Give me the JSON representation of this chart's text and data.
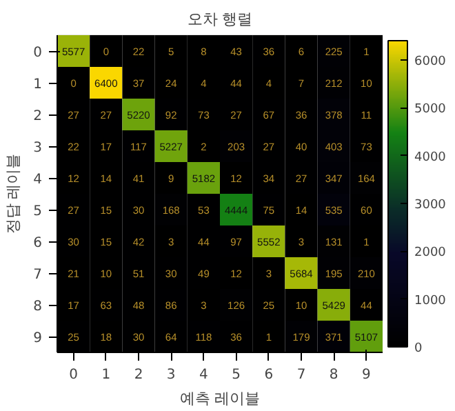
{
  "chart_data": {
    "type": "heatmap",
    "title": "오차 행렬",
    "xlabel": "예측 레이블",
    "ylabel": "정답 레이블",
    "categories": [
      "0",
      "1",
      "2",
      "3",
      "4",
      "5",
      "6",
      "7",
      "8",
      "9"
    ],
    "y_categories": [
      "0",
      "1",
      "2",
      "3",
      "4",
      "5",
      "6",
      "7",
      "8",
      "9"
    ],
    "cells": [
      [
        5577,
        0,
        22,
        5,
        8,
        43,
        36,
        6,
        225,
        1
      ],
      [
        0,
        6400,
        37,
        24,
        4,
        44,
        4,
        7,
        212,
        10
      ],
      [
        27,
        27,
        5220,
        92,
        73,
        27,
        67,
        36,
        378,
        11
      ],
      [
        22,
        17,
        117,
        5227,
        2,
        203,
        27,
        40,
        403,
        73
      ],
      [
        12,
        14,
        41,
        9,
        5182,
        12,
        34,
        27,
        347,
        164
      ],
      [
        27,
        15,
        30,
        168,
        53,
        4444,
        75,
        14,
        535,
        60
      ],
      [
        30,
        15,
        42,
        3,
        44,
        97,
        5552,
        3,
        131,
        1
      ],
      [
        21,
        10,
        51,
        30,
        49,
        12,
        3,
        5684,
        195,
        210
      ],
      [
        17,
        63,
        48,
        86,
        3,
        126,
        25,
        10,
        5429,
        44
      ],
      [
        25,
        18,
        30,
        64,
        118,
        36,
        1,
        179,
        371,
        5107
      ]
    ],
    "data_labels": true,
    "clim": [
      0,
      6400
    ],
    "cticks": [
      0,
      1000,
      2000,
      3000,
      4000,
      5000,
      6000
    ]
  }
}
